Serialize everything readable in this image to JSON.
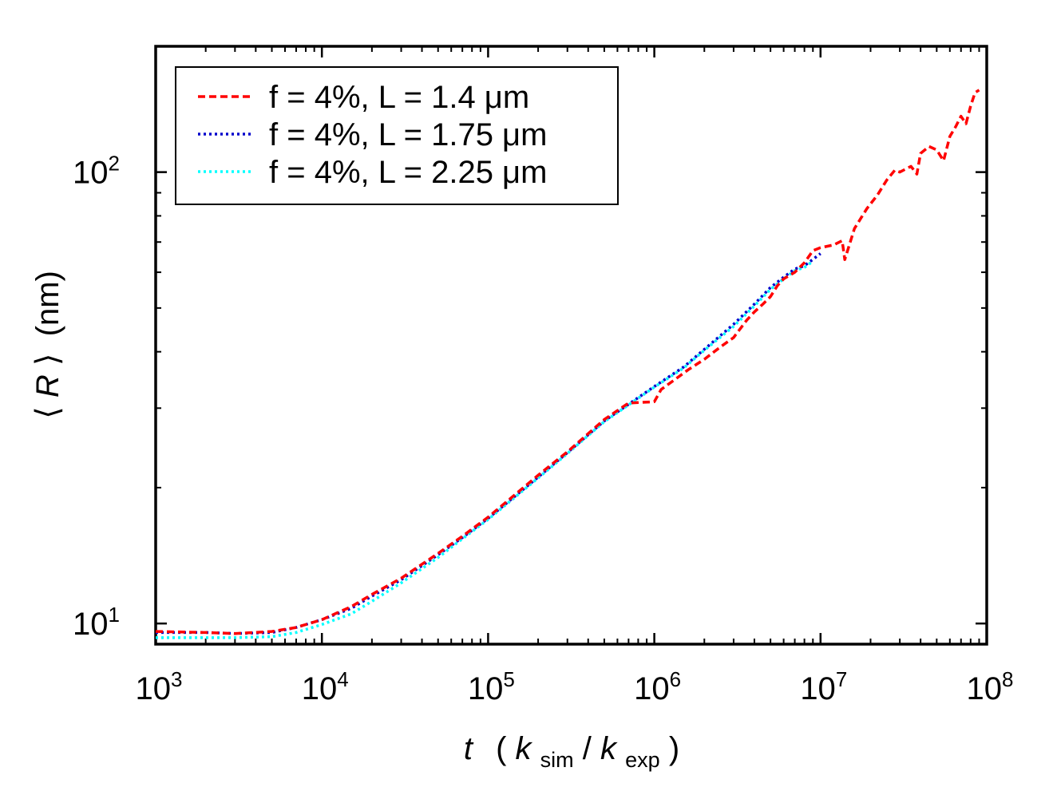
{
  "chart_data": {
    "type": "line",
    "title": "",
    "xscale": "log",
    "yscale": "log",
    "xlim": [
      1000,
      100000000
    ],
    "ylim": [
      9.0,
      190.0
    ],
    "xlabel": {
      "var": "t",
      "paren_open": "(",
      "num": "k",
      "num_sub": "sim",
      "slash": "/",
      "den": "k",
      "den_sub": "exp",
      "paren_close": ")"
    },
    "ylabel": {
      "open": "⟨",
      "var": "R",
      "close": "⟩",
      "unit": "(nm)"
    },
    "xticks": [
      {
        "value": 1000,
        "base": "10",
        "exp": "3"
      },
      {
        "value": 10000,
        "base": "10",
        "exp": "4"
      },
      {
        "value": 100000,
        "base": "10",
        "exp": "5"
      },
      {
        "value": 1000000,
        "base": "10",
        "exp": "6"
      },
      {
        "value": 10000000,
        "base": "10",
        "exp": "7"
      },
      {
        "value": 100000000,
        "base": "10",
        "exp": "8"
      }
    ],
    "yticks": [
      {
        "value": 10,
        "base": "10",
        "exp": "1"
      },
      {
        "value": 100,
        "base": "10",
        "exp": "2"
      }
    ],
    "legend_position": "top-left",
    "series": [
      {
        "name": "f = 4%, L = 1.4 μm",
        "color": "#ff0000",
        "dash": "dashed",
        "x": [
          1000,
          2000,
          3000,
          5000,
          7000,
          10000,
          15000,
          20000,
          30000,
          50000,
          70000,
          100000,
          200000,
          300000,
          500000,
          700000,
          1000000,
          1100000,
          1300000,
          1600000,
          2000000,
          2500000,
          3000000,
          3600000,
          4000000,
          4500000,
          5000000,
          5500000,
          6000000,
          7000000,
          8000000,
          9000000,
          10000000,
          12000000,
          13500000,
          14000000,
          16000000,
          19000000,
          22000000,
          25000000,
          28000000,
          30000000,
          35000000,
          38000000,
          40000000,
          45000000,
          50000000,
          55000000,
          60000000,
          65000000,
          70000000,
          75000000,
          80000000,
          85000000,
          90000000
        ],
        "y": [
          9.6,
          9.55,
          9.5,
          9.6,
          9.8,
          10.2,
          10.9,
          11.6,
          12.6,
          14.3,
          15.6,
          17.2,
          21.3,
          24.0,
          28.3,
          30.8,
          31.0,
          33.0,
          34.5,
          36.5,
          38.5,
          41.0,
          43.0,
          47.0,
          49.0,
          51.0,
          53.0,
          56.0,
          58.0,
          60.0,
          63.0,
          67.0,
          68.0,
          69.0,
          70.5,
          64.0,
          75.0,
          83.0,
          89.0,
          96.0,
          101.0,
          100.0,
          103.0,
          99.0,
          110.0,
          114.0,
          112.0,
          106.0,
          120.0,
          126.0,
          133.0,
          128.0,
          140.0,
          150.0,
          152.0
        ]
      },
      {
        "name": "f = 4%, L = 1.75 μm",
        "color": "#0000cc",
        "dash": "dotted",
        "x": [
          1000,
          2000,
          3000,
          5000,
          7000,
          10000,
          15000,
          20000,
          30000,
          50000,
          70000,
          100000,
          200000,
          300000,
          500000,
          700000,
          1000000,
          1500000,
          2000000,
          3000000,
          4000000,
          5000000,
          6000000,
          7000000,
          8000000,
          10000000
        ],
        "y": [
          9.55,
          9.55,
          9.5,
          9.55,
          9.8,
          10.2,
          10.8,
          11.5,
          12.5,
          14.2,
          15.5,
          17.1,
          21.1,
          23.9,
          28.1,
          30.6,
          33.5,
          37.0,
          40.5,
          46.0,
          51.0,
          55.5,
          58.5,
          61.0,
          62.0,
          66.0
        ]
      },
      {
        "name": "f = 4%, L = 2.25 μm",
        "color": "#00ffff",
        "dash": "dotted",
        "x": [
          1000,
          2000,
          3000,
          5000,
          7000,
          10000,
          15000,
          20000,
          30000,
          50000,
          70000,
          100000,
          200000,
          300000,
          500000,
          700000,
          1000000,
          1500000,
          2000000,
          3000000,
          4000000,
          5000000,
          6000000,
          7000000,
          8000000,
          9000000
        ],
        "y": [
          9.3,
          9.3,
          9.3,
          9.35,
          9.55,
          9.95,
          10.5,
          11.2,
          12.3,
          14.0,
          15.4,
          17.0,
          21.0,
          23.8,
          28.0,
          30.5,
          33.4,
          36.8,
          40.3,
          45.5,
          50.5,
          55.0,
          58.0,
          60.5,
          61.5,
          63.5
        ]
      }
    ]
  }
}
